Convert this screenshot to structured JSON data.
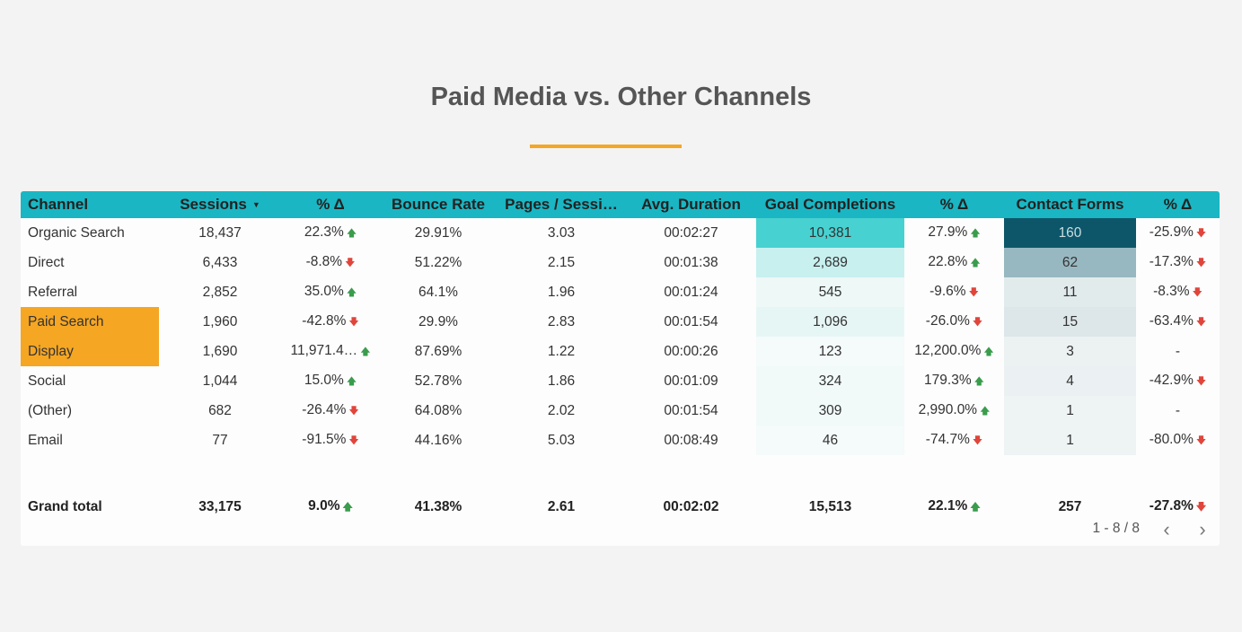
{
  "title": "Paid Media vs. Other Channels",
  "colors": {
    "header_bg": "#1ab6c3",
    "highlight": "#f5a623",
    "accent_underline": "#f5a623",
    "up": "#3a9c4c",
    "down": "#e0453b"
  },
  "columns": [
    "Channel",
    "Sessions",
    "% Δ",
    "Bounce Rate",
    "Pages / Sessi…",
    "Avg. Duration",
    "Goal Completions",
    "% Δ",
    "Contact Forms",
    "% Δ"
  ],
  "sort_icon": "sort-descending-icon",
  "rows": [
    {
      "channel": "Organic Search",
      "sessions": "18,437",
      "sess_delta": "22.3%",
      "sess_dir": "up",
      "bounce": "29.91%",
      "pages": "3.03",
      "duration": "00:02:27",
      "goals": "10,381",
      "goals_bg": "#48d1d1",
      "goals_fg": "#333",
      "goals_delta": "27.9%",
      "goals_dir": "up",
      "forms": "160",
      "forms_bg": "#0d5669",
      "forms_fg": "#c9dde2",
      "forms_delta": "-25.9%",
      "forms_dir": "down",
      "highlight": false
    },
    {
      "channel": "Direct",
      "sessions": "6,433",
      "sess_delta": "-8.8%",
      "sess_dir": "down",
      "bounce": "51.22%",
      "pages": "2.15",
      "duration": "00:01:38",
      "goals": "2,689",
      "goals_bg": "#c7f0ef",
      "goals_fg": "#333",
      "goals_delta": "22.8%",
      "goals_dir": "up",
      "forms": "62",
      "forms_bg": "#97b8c0",
      "forms_fg": "#333",
      "forms_delta": "-17.3%",
      "forms_dir": "down",
      "highlight": false
    },
    {
      "channel": "Referral",
      "sessions": "2,852",
      "sess_delta": "35.0%",
      "sess_dir": "up",
      "bounce": "64.1%",
      "pages": "1.96",
      "duration": "00:01:24",
      "goals": "545",
      "goals_bg": "#edf8f7",
      "goals_fg": "#333",
      "goals_delta": "-9.6%",
      "goals_dir": "down",
      "forms": "11",
      "forms_bg": "#e2ebec",
      "forms_fg": "#333",
      "forms_delta": "-8.3%",
      "forms_dir": "down",
      "highlight": false
    },
    {
      "channel": "Paid Search",
      "sessions": "1,960",
      "sess_delta": "-42.8%",
      "sess_dir": "down",
      "bounce": "29.9%",
      "pages": "2.83",
      "duration": "00:01:54",
      "goals": "1,096",
      "goals_bg": "#e6f6f5",
      "goals_fg": "#333",
      "goals_delta": "-26.0%",
      "goals_dir": "down",
      "forms": "15",
      "forms_bg": "#dde6e8",
      "forms_fg": "#333",
      "forms_delta": "-63.4%",
      "forms_dir": "down",
      "highlight": true
    },
    {
      "channel": "Display",
      "sessions": "1,690",
      "sess_delta": "11,971.4…",
      "sess_dir": "up",
      "bounce": "87.69%",
      "pages": "1.22",
      "duration": "00:00:26",
      "goals": "123",
      "goals_bg": "#f4fbfa",
      "goals_fg": "#333",
      "goals_delta": "12,200.0%",
      "goals_dir": "up",
      "forms": "3",
      "forms_bg": "#ecf1f2",
      "forms_fg": "#333",
      "forms_delta": "-",
      "forms_dir": "none",
      "highlight": true
    },
    {
      "channel": "Social",
      "sessions": "1,044",
      "sess_delta": "15.0%",
      "sess_dir": "up",
      "bounce": "52.78%",
      "pages": "1.86",
      "duration": "00:01:09",
      "goals": "324",
      "goals_bg": "#f1faf9",
      "goals_fg": "#333",
      "goals_delta": "179.3%",
      "goals_dir": "up",
      "forms": "4",
      "forms_bg": "#ebf1f2",
      "forms_fg": "#333",
      "forms_delta": "-42.9%",
      "forms_dir": "down",
      "highlight": false
    },
    {
      "channel": "(Other)",
      "sessions": "682",
      "sess_delta": "-26.4%",
      "sess_dir": "down",
      "bounce": "64.08%",
      "pages": "2.02",
      "duration": "00:01:54",
      "goals": "309",
      "goals_bg": "#f1faf9",
      "goals_fg": "#333",
      "goals_delta": "2,990.0%",
      "goals_dir": "up",
      "forms": "1",
      "forms_bg": "#eef3f4",
      "forms_fg": "#333",
      "forms_delta": "-",
      "forms_dir": "none",
      "highlight": false
    },
    {
      "channel": "Email",
      "sessions": "77",
      "sess_delta": "-91.5%",
      "sess_dir": "down",
      "bounce": "44.16%",
      "pages": "5.03",
      "duration": "00:08:49",
      "goals": "46",
      "goals_bg": "#f4fbfa",
      "goals_fg": "#333",
      "goals_delta": "-74.7%",
      "goals_dir": "down",
      "forms": "1",
      "forms_bg": "#eef3f4",
      "forms_fg": "#333",
      "forms_delta": "-80.0%",
      "forms_dir": "down",
      "highlight": false
    }
  ],
  "total": {
    "label": "Grand total",
    "sessions": "33,175",
    "sess_delta": "9.0%",
    "sess_dir": "up",
    "bounce": "41.38%",
    "pages": "2.61",
    "duration": "00:02:02",
    "goals": "15,513",
    "goals_delta": "22.1%",
    "goals_dir": "up",
    "forms": "257",
    "forms_delta": "-27.8%",
    "forms_dir": "down"
  },
  "pagination": {
    "text": "1 - 8 / 8",
    "prev_icon": "chevron-left-icon",
    "next_icon": "chevron-right-icon"
  }
}
